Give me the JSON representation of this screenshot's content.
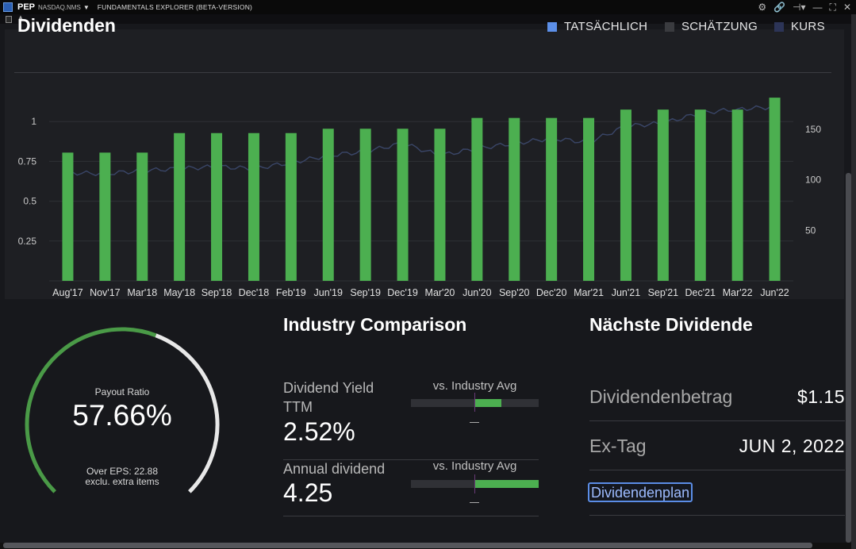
{
  "window": {
    "ticker": "PEP",
    "exchange": "NASDAQ.NMS",
    "title": "FUNDAMENTALS EXPLORER (BETA-VERSION)"
  },
  "chart": {
    "title": "Dividenden",
    "legend": [
      {
        "label": "TATSÄCHLICH",
        "color": "#5c8fe8"
      },
      {
        "label": "SCHÄTZUNG",
        "color": "#3a3b3f"
      },
      {
        "label": "KURS",
        "color": "#2c3457"
      }
    ]
  },
  "chart_data": {
    "type": "bar",
    "categories": [
      "Aug'17",
      "Nov'17",
      "Mar'18",
      "May'18",
      "Sep'18",
      "Dec'18",
      "Feb'19",
      "Jun'19",
      "Sep'19",
      "Dec'19",
      "Mar'20",
      "Jun'20",
      "Sep'20",
      "Dec'20",
      "Mar'21",
      "Jun'21",
      "Sep'21",
      "Dec'21",
      "Mar'22",
      "Jun'22"
    ],
    "series": [
      {
        "name": "TATSÄCHLICH",
        "axis": "left",
        "color": "#4caf50",
        "values": [
          0.805,
          0.805,
          0.805,
          0.9275,
          0.9275,
          0.9275,
          0.9275,
          0.955,
          0.955,
          0.955,
          0.955,
          1.0225,
          1.0225,
          1.0225,
          1.0225,
          1.075,
          1.075,
          1.075,
          1.075,
          1.15
        ]
      },
      {
        "name": "KURS",
        "axis": "right",
        "type": "line",
        "color": "#3a4668",
        "values": [
          107,
          106,
          109,
          111,
          113,
          111,
          117,
          124,
          128,
          136,
          124,
          131,
          136,
          141,
          137,
          153,
          156,
          166,
          170,
          172
        ]
      }
    ],
    "left_axis": {
      "ticks": [
        "0.25",
        "0.5",
        "0.75",
        "1"
      ],
      "ylim": [
        0,
        1.25
      ]
    },
    "right_axis": {
      "ticks": [
        "50",
        "100",
        "150"
      ],
      "ylim": [
        0,
        197
      ]
    }
  },
  "payout": {
    "label": "Payout Ratio",
    "value": "57.66%",
    "fraction": 0.5766,
    "eps_line1": "Over EPS: 22.88",
    "eps_line2": "exclu. extra items"
  },
  "industry": {
    "title": "Industry Comparison",
    "rows": [
      {
        "label": "Dividend Yield TTM",
        "value": "2.52%",
        "vs": "vs. Industry Avg"
      },
      {
        "label": "Annual dividend",
        "value": "4.25",
        "vs": "vs. Industry Avg"
      }
    ]
  },
  "next_dividend": {
    "title": "Nächste Dividende",
    "amount_label": "Dividendenbetrag",
    "amount_value": "$1.15",
    "exdate_label": "Ex-Tag",
    "exdate_value": "JUN 2, 2022",
    "schedule_button": "Dividendenplan"
  }
}
